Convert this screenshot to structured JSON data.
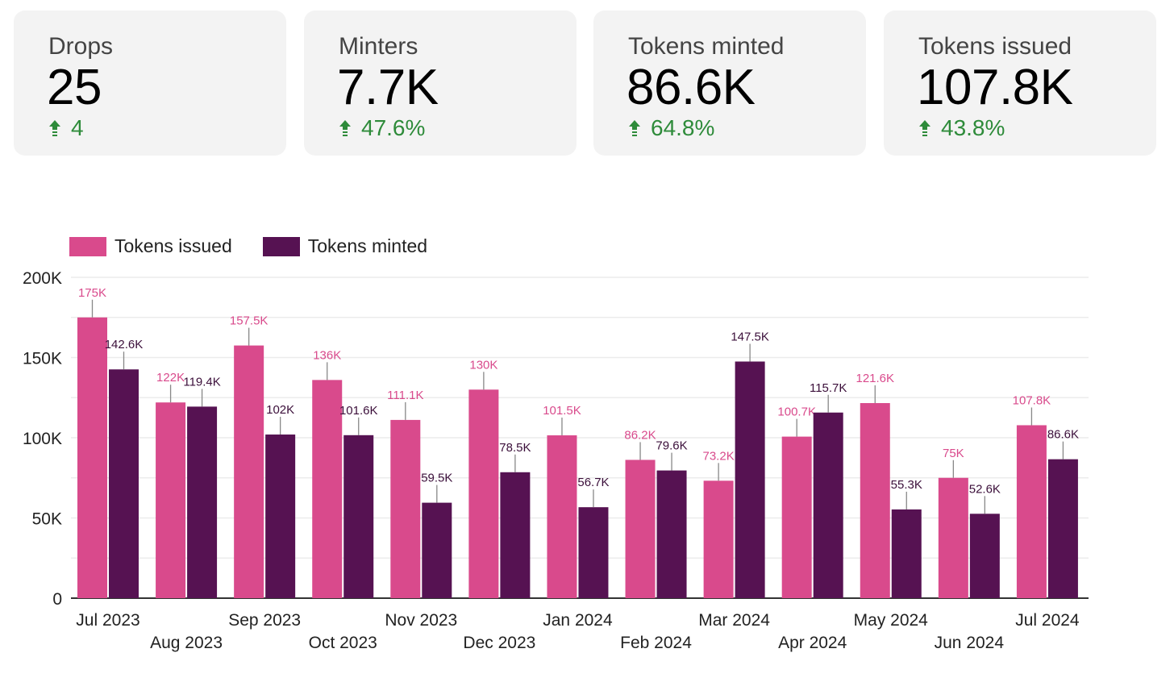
{
  "kpis": [
    {
      "label": "Drops",
      "value": "25",
      "delta": "4"
    },
    {
      "label": "Minters",
      "value": "7.7K",
      "delta": "47.6%"
    },
    {
      "label": "Tokens minted",
      "value": "86.6K",
      "delta": "64.8%"
    },
    {
      "label": "Tokens issued",
      "value": "107.8K",
      "delta": "43.8%"
    }
  ],
  "colors": {
    "issued": "#d94a8c",
    "minted": "#561252",
    "delta": "#2e8b3a"
  },
  "chart_data": {
    "type": "bar",
    "title": "",
    "xlabel": "",
    "ylabel": "",
    "ylim": [
      0,
      200000
    ],
    "yticks": [
      "0",
      "50K",
      "100K",
      "150K",
      "200K"
    ],
    "legend": "top-left",
    "grid": true,
    "categories": [
      "Jul 2023",
      "Aug 2023",
      "Sep 2023",
      "Oct 2023",
      "Nov 2023",
      "Dec 2023",
      "Jan 2024",
      "Feb 2024",
      "Mar 2024",
      "Apr 2024",
      "May 2024",
      "Jun 2024",
      "Jul 2024"
    ],
    "series": [
      {
        "name": "Tokens issued",
        "values": [
          175000,
          122000,
          157500,
          136000,
          111100,
          130000,
          101500,
          86200,
          73200,
          100700,
          121600,
          75000,
          107800
        ],
        "labels": [
          "175K",
          "122K",
          "157.5K",
          "136K",
          "111.1K",
          "130K",
          "101.5K",
          "86.2K",
          "73.2K",
          "100.7K",
          "121.6K",
          "75K",
          "107.8K"
        ]
      },
      {
        "name": "Tokens minted",
        "values": [
          142600,
          119400,
          102000,
          101600,
          59500,
          78500,
          56700,
          79600,
          147500,
          115700,
          55300,
          52600,
          86600
        ],
        "labels": [
          "142.6K",
          "119.4K",
          "102K",
          "101.6K",
          "59.5K",
          "78.5K",
          "56.7K",
          "79.6K",
          "147.5K",
          "115.7K",
          "55.3K",
          "52.6K",
          "86.6K"
        ]
      }
    ]
  }
}
